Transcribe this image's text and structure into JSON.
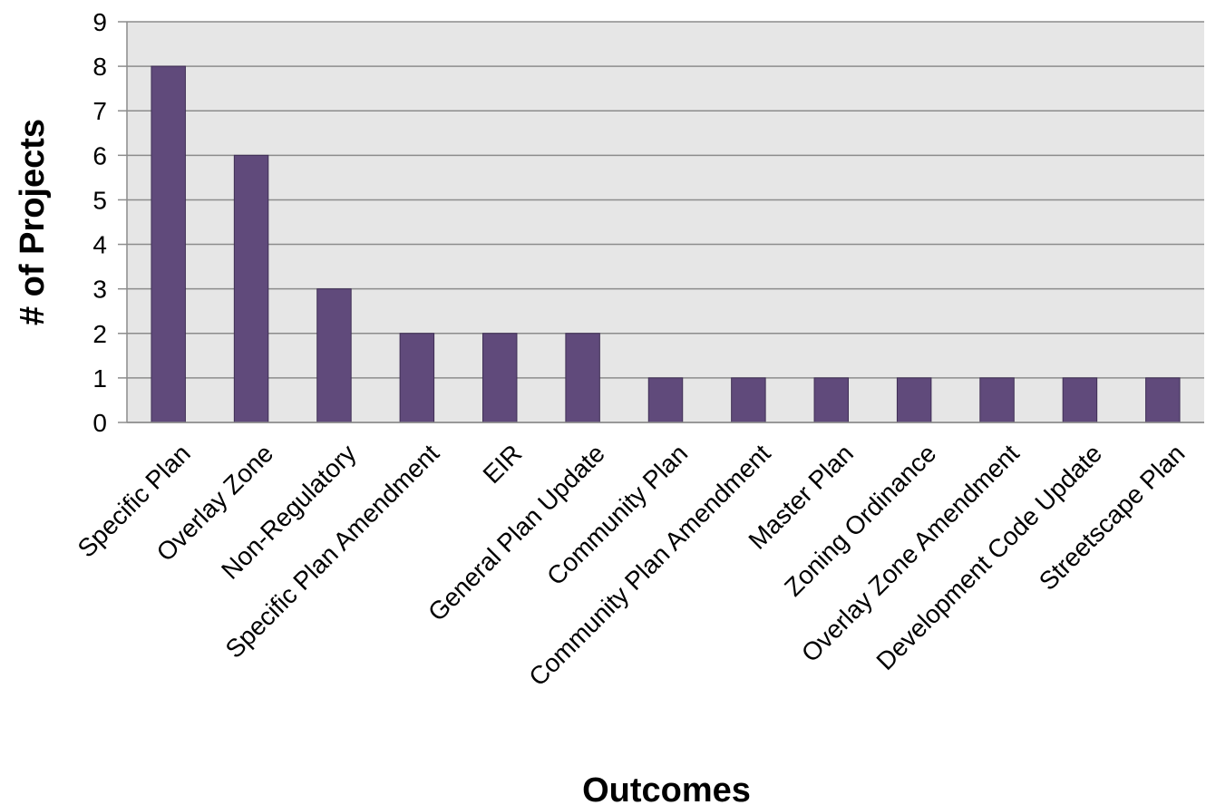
{
  "chart_data": {
    "type": "bar",
    "title": "",
    "xlabel": "Outcomes",
    "ylabel": "# of Projects",
    "ylim": [
      0,
      9
    ],
    "yticks": [
      0,
      1,
      2,
      3,
      4,
      5,
      6,
      7,
      8,
      9
    ],
    "grid": true,
    "legend": "none",
    "categories": [
      "Specific Plan",
      "Overlay Zone",
      "Non-Regulatory",
      "Specific Plan Amendment",
      "EIR",
      "General Plan Update",
      "Community Plan",
      "Community Plan Amendment",
      "Master Plan",
      "Zoning Ordinance",
      "Overlay Zone Amendment",
      "Development Code Update",
      "Streetscape Plan"
    ],
    "values": [
      8,
      6,
      3,
      2,
      2,
      2,
      1,
      1,
      1,
      1,
      1,
      1,
      1
    ]
  },
  "colors": {
    "bar": "#604a7b",
    "bar_stroke": "#3f2f55",
    "plot_background": "#e6e6e6",
    "gridline": "#8c8c8c",
    "axis": "#8c8c8c"
  }
}
